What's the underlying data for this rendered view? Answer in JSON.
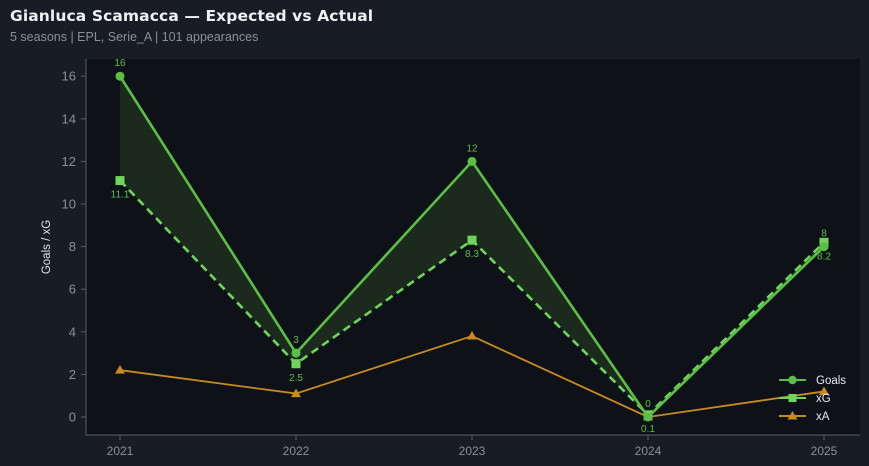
{
  "header": {
    "title": "Gianluca Scamacca — Expected vs Actual",
    "subtitle": "5 seasons | EPL, Serie_A | 101 appearances"
  },
  "colors": {
    "background": "#181c24",
    "plot_background": "#0e1118",
    "goals": "#5cbf45",
    "xg": "#6dd65a",
    "xa": "#c98a1e",
    "fill": "#1d2c1f",
    "axis": "#5a5f69",
    "tick_text": "#8a8f99"
  },
  "chart_data": {
    "type": "line",
    "title": "Gianluca Scamacca — Expected vs Actual",
    "subtitle": "5 seasons | EPL, Serie_A | 101 appearances",
    "xlabel": "",
    "ylabel": "Goals / xG",
    "categories": [
      "2021",
      "2022",
      "2023",
      "2024",
      "2025"
    ],
    "yticks": [
      "0",
      "2",
      "4",
      "6",
      "8",
      "10",
      "12",
      "14",
      "16"
    ],
    "ylim": [
      -0.8,
      16.8
    ],
    "grid": false,
    "legend_position": "lower right",
    "series": [
      {
        "name": "Goals",
        "values": [
          16,
          3,
          12,
          0,
          8
        ],
        "style": "solid",
        "marker": "circle",
        "labels": [
          "16",
          "3",
          "12",
          "0",
          "8"
        ]
      },
      {
        "name": "xG",
        "values": [
          11.1,
          2.5,
          8.3,
          0.1,
          8.2
        ],
        "style": "dashed",
        "marker": "square",
        "labels": [
          "11.1",
          "2.5",
          "8.3",
          "0.1",
          "8.2"
        ]
      },
      {
        "name": "xA",
        "values": [
          2.2,
          1.1,
          3.8,
          0.0,
          1.2
        ],
        "style": "solid",
        "marker": "triangle"
      }
    ],
    "annotations": "Shaded region between Goals and xG lines"
  },
  "legend": {
    "items": [
      {
        "label": "Goals"
      },
      {
        "label": "xG"
      },
      {
        "label": "xA"
      }
    ]
  }
}
